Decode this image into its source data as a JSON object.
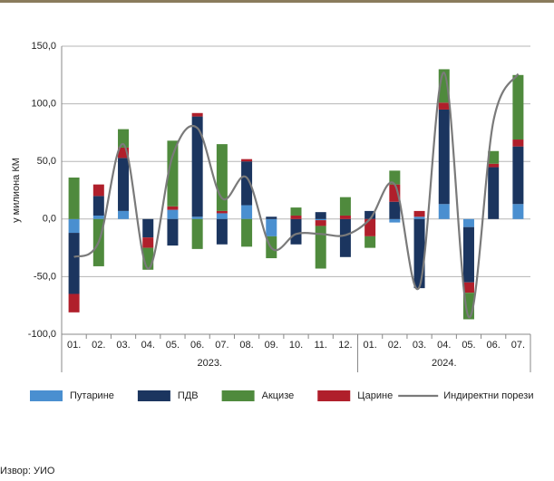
{
  "chart_data": {
    "type": "stacked_bar_line",
    "y_label": "у милиона КМ",
    "source": "Извор: УИО",
    "groups": [
      {
        "label": "2023.",
        "months": [
          "01.",
          "02.",
          "03.",
          "04.",
          "05.",
          "06.",
          "07.",
          "08.",
          "09.",
          "10.",
          "11.",
          "12."
        ]
      },
      {
        "label": "2024.",
        "months": [
          "01.",
          "02.",
          "03.",
          "04.",
          "05.",
          "06.",
          "07."
        ]
      }
    ],
    "series": [
      {
        "name": "Путарине",
        "color": "#4a8fd0",
        "values": [
          -12,
          3,
          7,
          0,
          8,
          2,
          5,
          12,
          -15,
          0,
          -1,
          0,
          0,
          -3,
          2,
          13,
          -7,
          0,
          13
        ]
      },
      {
        "name": "ПДВ",
        "color": "#1b355f",
        "values": [
          -53,
          17,
          46,
          -16,
          -23,
          87,
          -22,
          38,
          2,
          -22,
          6,
          -33,
          7,
          15,
          -60,
          82,
          -48,
          45,
          50
        ]
      },
      {
        "name": "Акцизе",
        "color": "#4f8a3d",
        "values": [
          36,
          -41,
          16,
          -19,
          57,
          -26,
          58,
          -24,
          -19,
          7,
          -37,
          16,
          -10,
          12,
          0,
          29,
          -23,
          11,
          56
        ]
      },
      {
        "name": "Царине",
        "color": "#b01f2b",
        "values": [
          -16,
          10,
          9,
          -9,
          3,
          3,
          2,
          2,
          0,
          3,
          -5,
          3,
          -15,
          15,
          5,
          6,
          -9,
          3,
          6
        ]
      }
    ],
    "line": {
      "name": "Индиректни порези",
      "color": "#7a7a7a",
      "values": [
        -33,
        -20,
        65,
        -43,
        55,
        79,
        18,
        36,
        -25,
        -13,
        -13,
        -14,
        0,
        30,
        -59,
        127,
        -85,
        85,
        126
      ]
    },
    "ylim": [
      -100,
      150
    ],
    "yticks": [
      {
        "value": -100,
        "label": "-100,0"
      },
      {
        "value": -50,
        "label": "-50,0"
      },
      {
        "value": 0,
        "label": "0,0"
      },
      {
        "value": 50,
        "label": "50,0"
      },
      {
        "value": 100,
        "label": "100,0"
      },
      {
        "value": 150,
        "label": "150,0"
      }
    ],
    "grid": true
  }
}
